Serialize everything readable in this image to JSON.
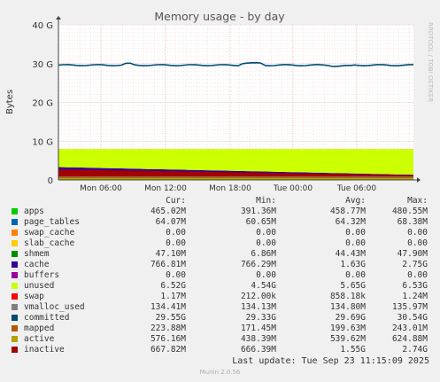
{
  "chart_data": {
    "type": "area",
    "title": "Memory usage - by day",
    "ylabel": "Bytes",
    "watermark": "RRDTOOL / TOBI OETIKER",
    "ylim": [
      0,
      40
    ],
    "yticks": [
      "0",
      "10 G",
      "20 G",
      "30 G",
      "40 G"
    ],
    "ytick_values": [
      0,
      10,
      20,
      30,
      40
    ],
    "xticks": [
      "Mon 06:00",
      "Mon 12:00",
      "Mon 18:00",
      "Tue 00:00",
      "Tue 06:00"
    ],
    "grid": true,
    "series": [
      {
        "name": "apps",
        "color": "#00cc00",
        "cur": "465.02M",
        "min": "391.36M",
        "avg": "458.77M",
        "max": "480.55M"
      },
      {
        "name": "page_tables",
        "color": "#0066b3",
        "cur": "64.07M",
        "min": "60.65M",
        "avg": "64.32M",
        "max": "68.38M"
      },
      {
        "name": "swap_cache",
        "color": "#ff8000",
        "cur": "0.00",
        "min": "0.00",
        "avg": "0.00",
        "max": "0.00"
      },
      {
        "name": "slab_cache",
        "color": "#ffcc00",
        "cur": "0.00",
        "min": "0.00",
        "avg": "0.00",
        "max": "0.00"
      },
      {
        "name": "shmem",
        "color": "#008f00",
        "cur": "47.10M",
        "min": "6.86M",
        "avg": "44.43M",
        "max": "47.90M"
      },
      {
        "name": "cache",
        "color": "#330099",
        "cur": "766.81M",
        "min": "766.29M",
        "avg": "1.63G",
        "max": "2.75G"
      },
      {
        "name": "buffers",
        "color": "#990099",
        "cur": "0.00",
        "min": "0.00",
        "avg": "0.00",
        "max": "0.00"
      },
      {
        "name": "unused",
        "color": "#ccff00",
        "cur": "6.52G",
        "min": "4.54G",
        "avg": "5.65G",
        "max": "6.53G"
      },
      {
        "name": "swap",
        "color": "#ff0000",
        "cur": "1.17M",
        "min": "212.00k",
        "avg": "858.18k",
        "max": "1.24M"
      },
      {
        "name": "vmalloc_used",
        "color": "#808080",
        "cur": "134.41M",
        "min": "134.13M",
        "avg": "134.80M",
        "max": "135.97M"
      },
      {
        "name": "committed",
        "color": "#004b73",
        "cur": "29.55G",
        "min": "29.33G",
        "avg": "29.69G",
        "max": "30.54G"
      },
      {
        "name": "mapped",
        "color": "#b35900",
        "cur": "223.88M",
        "min": "171.45M",
        "avg": "199.63M",
        "max": "243.01M"
      },
      {
        "name": "active",
        "color": "#b3a200",
        "cur": "576.16M",
        "min": "438.39M",
        "avg": "539.62M",
        "max": "624.88M"
      },
      {
        "name": "inactive",
        "color": "#a30000",
        "cur": "667.82M",
        "min": "666.39M",
        "avg": "1.55G",
        "max": "2.74G"
      }
    ]
  },
  "legend_header": {
    "cur": "Cur:",
    "min": "Min:",
    "avg": "Avg:",
    "max": "Max:"
  },
  "last_update": "Last update: Tue Sep 23 11:15:09 2025",
  "footer": "Munin 2.0.56"
}
